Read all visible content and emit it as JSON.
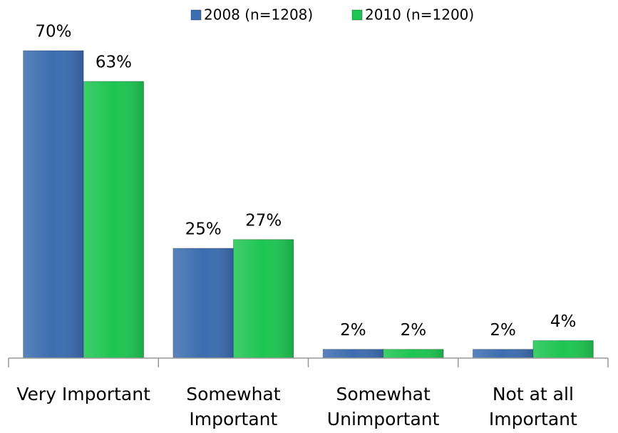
{
  "chart_data": {
    "type": "bar",
    "categories": [
      "Very Important",
      "Somewhat\nImportant",
      "Somewhat\nUnimportant",
      "Not at all\nImportant"
    ],
    "series": [
      {
        "name": "2008 (n=1208)",
        "color": "#3c6db0",
        "values": [
          70,
          25,
          2,
          2
        ],
        "value_labels": [
          "70%",
          "25%",
          "2%",
          "2%"
        ]
      },
      {
        "name": "2010 (n=1200)",
        "color": "#1ec552",
        "values": [
          63,
          27,
          2,
          4
        ],
        "value_labels": [
          "63%",
          "27%",
          "2%",
          "4%"
        ]
      }
    ],
    "legend": "top"
  }
}
